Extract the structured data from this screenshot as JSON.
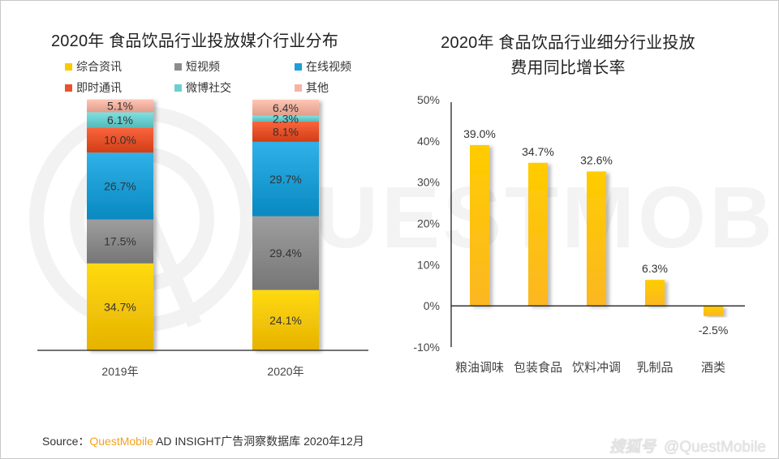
{
  "chart_data": [
    {
      "type": "bar",
      "stacked": true,
      "title": "2020年 食品饮品行业投放媒介行业分布",
      "categories": [
        "2019年",
        "2020年"
      ],
      "series": [
        {
          "name": "综合资讯",
          "color": "#fcc800",
          "values": [
            34.7,
            24.1
          ],
          "labels": [
            "34.7%",
            "24.1%"
          ]
        },
        {
          "name": "短视频",
          "color": "#8c8c8c",
          "values": [
            17.5,
            29.4
          ],
          "labels": [
            "17.5%",
            "29.4%"
          ]
        },
        {
          "name": "在线视频",
          "color": "#1e9fd6",
          "values": [
            26.7,
            29.7
          ],
          "labels": [
            "26.7%",
            "29.7%"
          ]
        },
        {
          "name": "即时通讯",
          "color": "#e8532b",
          "values": [
            10.0,
            8.1
          ],
          "labels": [
            "10.0%",
            "8.1%"
          ]
        },
        {
          "name": "微博社交",
          "color": "#6ccfcf",
          "values": [
            6.1,
            2.3
          ],
          "labels": [
            "6.1%",
            "2.3%"
          ]
        },
        {
          "name": "其他",
          "color": "#f7b3a1",
          "values": [
            5.1,
            6.4
          ],
          "labels": [
            "5.1%",
            "6.4%"
          ]
        }
      ],
      "ylim": [
        0,
        100
      ],
      "legend": "top",
      "grid": false,
      "xlabel": "",
      "ylabel": ""
    },
    {
      "type": "bar",
      "title": "2020年  食品饮品行业细分行业投放费用同比增长率",
      "title_lines": [
        "2020年  食品饮品行业细分行业投放",
        "费用同比增长率"
      ],
      "categories": [
        "粮油调味",
        "包装食品",
        "饮料冲调",
        "乳制品",
        "酒类"
      ],
      "values": [
        39.0,
        34.7,
        32.6,
        6.3,
        -2.5
      ],
      "labels": [
        "39.0%",
        "34.7%",
        "32.6%",
        "6.3%",
        "-2.5%"
      ],
      "color": "#fcc000",
      "ylim": [
        -10,
        50
      ],
      "yticks": [
        50,
        40,
        30,
        20,
        10,
        0,
        -10
      ],
      "ytick_labels": [
        "50%",
        "40%",
        "30%",
        "20%",
        "10%",
        "0%",
        "-10%"
      ],
      "grid": false,
      "xlabel": "",
      "ylabel": ""
    }
  ],
  "footer": {
    "source_prefix": "Source：",
    "source_brand": "QuestMobile",
    "source_rest": " AD INSIGHT广告洞察数据库 2020年12月",
    "watermark_logo": "搜狐号",
    "watermark_handle": "@QuestMobile"
  },
  "background_watermark": "QUESTMOBILE"
}
